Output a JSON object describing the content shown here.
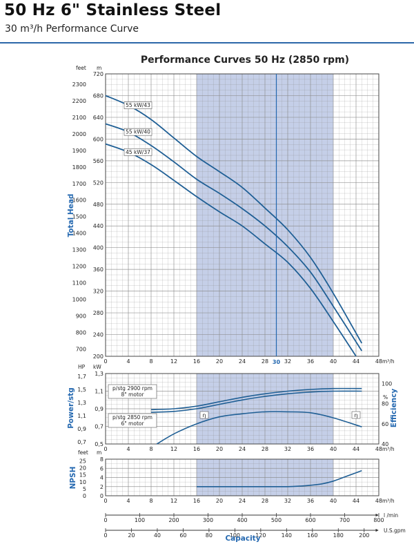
{
  "header": {
    "title": "50 Hz 6\" Stainless Steel",
    "subtitle": "30 m³/h Performance Curve"
  },
  "colors": {
    "curve": "#1f5f95",
    "axis_blue": "#2468b0",
    "band": "#c5cfe8",
    "grid": "#8a8a8a",
    "rule": "#2b66a8"
  },
  "chart_data": [
    {
      "type": "line",
      "title": "Performance Curves 50 Hz (2850 rpm)",
      "ylabel": "Total Head",
      "yunit_left": "feet",
      "yunit_right": "m",
      "xunit": "m³/h",
      "xlim": [
        0,
        48
      ],
      "ylim": [
        200,
        720
      ],
      "ticks_m": [
        200,
        240,
        280,
        320,
        360,
        400,
        440,
        480,
        520,
        560,
        600,
        640,
        680,
        720
      ],
      "ticks_feet": [
        700,
        800,
        900,
        1000,
        1100,
        1200,
        1300,
        1400,
        1500,
        1600,
        1700,
        1800,
        1900,
        2000,
        2100,
        2200,
        2300
      ],
      "ticks_x": [
        0,
        4,
        8,
        12,
        16,
        20,
        24,
        28,
        32,
        36,
        40,
        44,
        48
      ],
      "shaded_range": [
        16,
        40
      ],
      "design_point_x": 30,
      "design_point_label": "30",
      "series": [
        {
          "name": "55 kW/43",
          "x": [
            0,
            4,
            8,
            12,
            16,
            20,
            24,
            28,
            32,
            36,
            40,
            45
          ],
          "y": [
            680,
            662,
            636,
            602,
            568,
            540,
            511,
            473,
            433,
            382,
            316,
            224
          ]
        },
        {
          "name": "55 kW/40",
          "x": [
            0,
            4,
            8,
            12,
            16,
            20,
            24,
            28,
            32,
            36,
            40,
            45
          ],
          "y": [
            628,
            613,
            588,
            558,
            526,
            500,
            472,
            440,
            402,
            355,
            292,
            210
          ]
        },
        {
          "name": "45 kW/37",
          "x": [
            0,
            4,
            8,
            12,
            16,
            20,
            24,
            28,
            32,
            36,
            40,
            44
          ],
          "y": [
            591,
            576,
            553,
            524,
            494,
            466,
            440,
            407,
            373,
            325,
            264,
            200
          ]
        }
      ]
    },
    {
      "type": "line",
      "ylabel": "Power/stg",
      "ylabel_right": "Efficiency",
      "yunit_left": "HP",
      "yunit_mid": "kW",
      "yunit_right": "%",
      "xunit": "m³/h",
      "xlim": [
        0,
        48
      ],
      "ylim": [
        0.5,
        1.3
      ],
      "ticks_kw": [
        0.5,
        0.7,
        0.9,
        1.1,
        1.3
      ],
      "ticks_kw_labels": [
        "0,5",
        "0,7",
        "0,9",
        "1,1",
        "1,3"
      ],
      "ticks_hp": [
        0.7,
        0.9,
        1.1,
        1.3,
        1.5,
        1.7
      ],
      "ticks_hp_labels": [
        "0,7",
        "0,9",
        "1,1",
        "1,3",
        "1,5",
        "1,7"
      ],
      "ticks_eff": [
        40,
        60,
        80,
        100
      ],
      "ticks_x": [
        0,
        4,
        8,
        12,
        16,
        20,
        24,
        28,
        32,
        36,
        40,
        44,
        48
      ],
      "shaded_range": [
        16,
        40
      ],
      "eta_label": "η",
      "annotations": [
        {
          "line1": "p/stg 2900 rpm",
          "line2": "8\" motor"
        },
        {
          "line1": "p/stg 2850 rpm",
          "line2": "6\" motor"
        }
      ],
      "series": [
        {
          "name": "p/stg 2900 rpm 8\" motor",
          "x": [
            8,
            12,
            16,
            20,
            24,
            28,
            32,
            36,
            40,
            45
          ],
          "y": [
            0.89,
            0.9,
            0.93,
            0.98,
            1.03,
            1.07,
            1.1,
            1.12,
            1.13,
            1.13
          ]
        },
        {
          "name": "p/stg 2850 rpm 6\" motor",
          "x": [
            8,
            12,
            16,
            20,
            24,
            28,
            32,
            36,
            40,
            45
          ],
          "y": [
            0.86,
            0.87,
            0.9,
            0.95,
            1.0,
            1.04,
            1.07,
            1.09,
            1.1,
            1.1
          ]
        },
        {
          "name": "η",
          "x": [
            9,
            12,
            16,
            20,
            24,
            28,
            32,
            36,
            40,
            45
          ],
          "y_eff": [
            40,
            50,
            60,
            67,
            70,
            72,
            72,
            71,
            66,
            57
          ]
        }
      ]
    },
    {
      "type": "line",
      "ylabel": "NPSH",
      "yunit_left": "feet",
      "yunit_right": "m",
      "xunit": "m³/h",
      "xlim": [
        0,
        48
      ],
      "ylim": [
        0,
        8
      ],
      "ticks_m": [
        0,
        2,
        4,
        6,
        8
      ],
      "ticks_feet": [
        0,
        5,
        10,
        15,
        20,
        25
      ],
      "ticks_x": [
        0,
        4,
        8,
        12,
        16,
        20,
        24,
        28,
        32,
        36,
        40,
        44,
        48
      ],
      "shaded_range": [
        16,
        40
      ],
      "series": [
        {
          "name": "NPSH",
          "x": [
            16,
            20,
            24,
            28,
            32,
            34,
            36,
            38,
            40,
            42,
            45
          ],
          "y": [
            2,
            2,
            2,
            2,
            2,
            2.1,
            2.3,
            2.6,
            3.2,
            4.1,
            5.5
          ]
        }
      ]
    },
    {
      "type": "axes",
      "xlabel": "Capacity",
      "axes": [
        {
          "unit": "l /min",
          "ticks": [
            0,
            100,
            200,
            300,
            400,
            500,
            600,
            700,
            800
          ],
          "per_m3h": 16.6667
        },
        {
          "unit": "U.S.gpm",
          "ticks": [
            0,
            20,
            40,
            60,
            80,
            100,
            120,
            140,
            160,
            180,
            200
          ],
          "per_m3h": 4.4029
        }
      ]
    }
  ]
}
